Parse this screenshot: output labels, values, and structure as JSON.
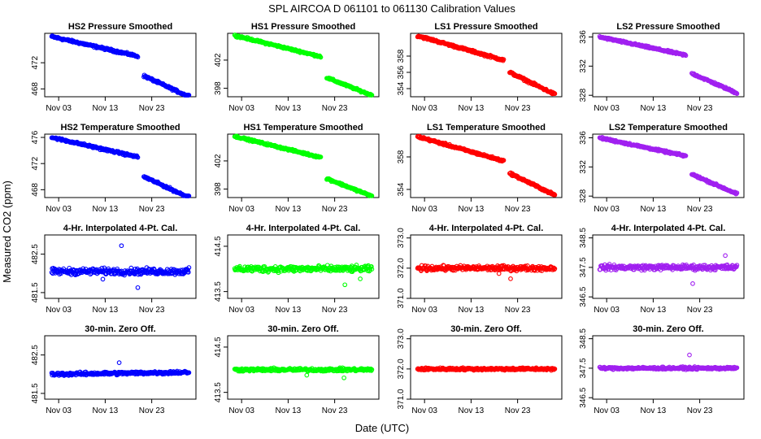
{
  "figure": {
    "title": "SPL   AIRCOA D   061101 to 061130   Calibration Values",
    "xlabel": "Date (UTC)",
    "ylabel": "Measured CO2 (ppm)"
  },
  "colors": {
    "HS2": "#0000ff",
    "HS1": "#00ff00",
    "LS1": "#ff0000",
    "LS2": "#a020f0"
  },
  "row_titles": [
    "Pressure Smoothed",
    "Temperature Smoothed",
    "4-Hr. Interpolated 4-Pt. Cal.",
    "30-min. Zero Off."
  ],
  "chart_data": [
    {
      "type": "scatter",
      "title": "HS2 Pressure Smoothed",
      "series": "HS2",
      "row": 0,
      "col": 0,
      "ylim": [
        466.8,
        476.5
      ],
      "yticks": [
        "468",
        "472"
      ],
      "xticks": [
        "Nov 03",
        "Nov 13",
        "Nov 23"
      ],
      "x_start": 1.5,
      "x_end": 31.0,
      "segments": [
        {
          "from": 1.5,
          "to": 20.0,
          "y0": 476.0,
          "y1": 473.0
        },
        {
          "from": 21.3,
          "to": 31.0,
          "y0": 470.0,
          "y1": 466.8
        }
      ],
      "noise": 0.25
    },
    {
      "type": "scatter",
      "title": "HS1 Pressure Smoothed",
      "series": "HS1",
      "row": 0,
      "col": 1,
      "ylim": [
        396.8,
        405.8
      ],
      "yticks": [
        "398",
        "402"
      ],
      "xticks": [
        "Nov 03",
        "Nov 13",
        "Nov 23"
      ],
      "x_start": 1.5,
      "x_end": 31.0,
      "segments": [
        {
          "from": 1.5,
          "to": 20.0,
          "y0": 405.5,
          "y1": 402.5
        },
        {
          "from": 21.3,
          "to": 31.0,
          "y0": 399.5,
          "y1": 397.0
        }
      ],
      "noise": 0.2
    },
    {
      "type": "scatter",
      "title": "LS1 Pressure Smoothed",
      "series": "LS1",
      "row": 0,
      "col": 2,
      "ylim": [
        353.0,
        360.8
      ],
      "yticks": [
        "354",
        "356",
        "358"
      ],
      "xticks": [
        "Nov 03",
        "Nov 13",
        "Nov 23"
      ],
      "x_start": 1.5,
      "x_end": 31.0,
      "segments": [
        {
          "from": 1.5,
          "to": 20.0,
          "y0": 360.5,
          "y1": 357.5
        },
        {
          "from": 21.3,
          "to": 31.0,
          "y0": 356.0,
          "y1": 353.3
        }
      ],
      "noise": 0.2
    },
    {
      "type": "scatter",
      "title": "LS2 Pressure Smoothed",
      "series": "LS2",
      "row": 0,
      "col": 3,
      "ylim": [
        327.8,
        336.5
      ],
      "yticks": [
        "328",
        "332",
        "336"
      ],
      "xticks": [
        "Nov 03",
        "Nov 13",
        "Nov 23"
      ],
      "x_start": 1.5,
      "x_end": 31.0,
      "segments": [
        {
          "from": 1.5,
          "to": 20.0,
          "y0": 336.0,
          "y1": 333.5
        },
        {
          "from": 21.3,
          "to": 31.0,
          "y0": 331.0,
          "y1": 328.3
        }
      ],
      "noise": 0.2
    },
    {
      "type": "scatter",
      "title": "HS2 Temperature Smoothed",
      "series": "HS2",
      "row": 1,
      "col": 0,
      "ylim": [
        466.8,
        476.5
      ],
      "yticks": [
        "468",
        "472",
        "476"
      ],
      "xticks": [
        "Nov 03",
        "Nov 13",
        "Nov 23"
      ],
      "x_start": 1.5,
      "x_end": 31.0,
      "segments": [
        {
          "from": 1.5,
          "to": 20.0,
          "y0": 476.0,
          "y1": 473.0
        },
        {
          "from": 21.3,
          "to": 31.0,
          "y0": 470.0,
          "y1": 466.8
        }
      ],
      "noise": 0.25
    },
    {
      "type": "scatter",
      "title": "HS1 Temperature Smoothed",
      "series": "HS1",
      "row": 1,
      "col": 1,
      "ylim": [
        396.8,
        405.8
      ],
      "yticks": [
        "398",
        "402"
      ],
      "xticks": [
        "Nov 03",
        "Nov 13",
        "Nov 23"
      ],
      "x_start": 1.5,
      "x_end": 31.0,
      "segments": [
        {
          "from": 1.5,
          "to": 20.0,
          "y0": 405.5,
          "y1": 402.5
        },
        {
          "from": 21.3,
          "to": 31.0,
          "y0": 399.5,
          "y1": 397.0
        }
      ],
      "noise": 0.2
    },
    {
      "type": "scatter",
      "title": "LS1 Temperature Smoothed",
      "series": "LS1",
      "row": 1,
      "col": 2,
      "ylim": [
        353.0,
        360.8
      ],
      "yticks": [
        "354",
        "358"
      ],
      "xticks": [
        "Nov 03",
        "Nov 13",
        "Nov 23"
      ],
      "x_start": 1.5,
      "x_end": 31.0,
      "segments": [
        {
          "from": 1.5,
          "to": 20.0,
          "y0": 360.5,
          "y1": 357.5
        },
        {
          "from": 21.3,
          "to": 31.0,
          "y0": 356.0,
          "y1": 353.3
        }
      ],
      "noise": 0.2
    },
    {
      "type": "scatter",
      "title": "LS2 Temperature Smoothed",
      "series": "LS2",
      "row": 1,
      "col": 3,
      "ylim": [
        327.8,
        336.5
      ],
      "yticks": [
        "328",
        "332",
        "336"
      ],
      "xticks": [
        "Nov 03",
        "Nov 13",
        "Nov 23"
      ],
      "x_start": 1.5,
      "x_end": 31.0,
      "segments": [
        {
          "from": 1.5,
          "to": 20.0,
          "y0": 336.0,
          "y1": 333.5
        },
        {
          "from": 21.3,
          "to": 31.0,
          "y0": 331.0,
          "y1": 328.3
        }
      ],
      "noise": 0.2
    },
    {
      "type": "scatter",
      "title": "4-Hr. Interpolated 4-Pt. Cal.",
      "series": "HS2",
      "row": 2,
      "col": 0,
      "ylim": [
        481.35,
        483.0
      ],
      "yticks": [
        "481.5",
        "482.5"
      ],
      "xticks": [
        "Nov 03",
        "Nov 13",
        "Nov 23"
      ],
      "x_start": 1.5,
      "x_end": 31.0,
      "segments": [
        {
          "from": 1.5,
          "to": 31.0,
          "y0": 482.05,
          "y1": 482.05
        }
      ],
      "noise": 0.12,
      "outliers": [
        [
          16.5,
          482.72
        ],
        [
          20.0,
          481.63
        ],
        [
          12.5,
          481.85
        ]
      ]
    },
    {
      "type": "scatter",
      "title": "4-Hr. Interpolated 4-Pt. Cal.",
      "series": "HS1",
      "row": 2,
      "col": 1,
      "ylim": [
        413.35,
        414.75
      ],
      "yticks": [
        "413.5",
        "414.5"
      ],
      "xticks": [
        "Nov 03",
        "Nov 13",
        "Nov 23"
      ],
      "x_start": 1.5,
      "x_end": 31.0,
      "segments": [
        {
          "from": 1.5,
          "to": 31.0,
          "y0": 414.0,
          "y1": 414.0
        }
      ],
      "noise": 0.1,
      "outliers": [
        [
          25.2,
          413.65
        ],
        [
          28.5,
          413.78
        ]
      ]
    },
    {
      "type": "scatter",
      "title": "4-Hr. Interpolated 4-Pt. Cal.",
      "series": "LS1",
      "row": 2,
      "col": 2,
      "ylim": [
        371.0,
        373.1
      ],
      "yticks": [
        "371.0",
        "372.0",
        "373.0"
      ],
      "xticks": [
        "Nov 03",
        "Nov 13",
        "Nov 23"
      ],
      "x_start": 1.5,
      "x_end": 31.0,
      "segments": [
        {
          "from": 1.5,
          "to": 31.0,
          "y0": 372.0,
          "y1": 372.0
        }
      ],
      "noise": 0.12,
      "outliers": [
        [
          21.5,
          371.65
        ],
        [
          19.0,
          371.82
        ]
      ]
    },
    {
      "type": "scatter",
      "title": "4-Hr. Interpolated 4-Pt. Cal.",
      "series": "LS2",
      "row": 2,
      "col": 3,
      "ylim": [
        346.45,
        348.6
      ],
      "yticks": [
        "346.5",
        "347.5",
        "348.5"
      ],
      "xticks": [
        "Nov 03",
        "Nov 13",
        "Nov 23"
      ],
      "x_start": 1.5,
      "x_end": 31.0,
      "segments": [
        {
          "from": 1.5,
          "to": 31.0,
          "y0": 347.5,
          "y1": 347.5
        }
      ],
      "noise": 0.13,
      "outliers": [
        [
          21.5,
          346.95
        ],
        [
          28.5,
          347.9
        ]
      ]
    },
    {
      "type": "scatter",
      "title": "30-min. Zero Off.",
      "series": "HS2",
      "row": 3,
      "col": 0,
      "ylim": [
        481.35,
        483.0
      ],
      "yticks": [
        "481.5",
        "482.5"
      ],
      "xticks": [
        "Nov 03",
        "Nov 13",
        "Nov 23"
      ],
      "x_start": 1.5,
      "x_end": 31.0,
      "segments": [
        {
          "from": 1.5,
          "to": 31.0,
          "y0": 482.0,
          "y1": 482.05
        }
      ],
      "noise": 0.06,
      "outliers": [
        [
          16.0,
          482.3
        ]
      ]
    },
    {
      "type": "scatter",
      "title": "30-min. Zero Off.",
      "series": "HS1",
      "row": 3,
      "col": 1,
      "ylim": [
        413.35,
        414.75
      ],
      "yticks": [
        "413.5",
        "414.5"
      ],
      "xticks": [
        "Nov 03",
        "Nov 13",
        "Nov 23"
      ],
      "x_start": 1.5,
      "x_end": 31.0,
      "segments": [
        {
          "from": 1.5,
          "to": 31.0,
          "y0": 414.0,
          "y1": 414.0
        }
      ],
      "noise": 0.05,
      "outliers": [
        [
          17.0,
          413.88
        ],
        [
          25.0,
          413.82
        ]
      ]
    },
    {
      "type": "scatter",
      "title": "30-min. Zero Off.",
      "series": "LS1",
      "row": 3,
      "col": 2,
      "ylim": [
        371.0,
        373.1
      ],
      "yticks": [
        "371.0",
        "372.0",
        "373.0"
      ],
      "xticks": [
        "Nov 03",
        "Nov 13",
        "Nov 23"
      ],
      "x_start": 1.5,
      "x_end": 31.0,
      "segments": [
        {
          "from": 1.5,
          "to": 31.0,
          "y0": 372.0,
          "y1": 372.0
        }
      ],
      "noise": 0.06,
      "outliers": []
    },
    {
      "type": "scatter",
      "title": "30-min. Zero Off.",
      "series": "LS2",
      "row": 3,
      "col": 3,
      "ylim": [
        346.45,
        348.6
      ],
      "yticks": [
        "346.5",
        "347.5",
        "348.5"
      ],
      "xticks": [
        "Nov 03",
        "Nov 13",
        "Nov 23"
      ],
      "x_start": 1.5,
      "x_end": 31.0,
      "segments": [
        {
          "from": 1.5,
          "to": 31.0,
          "y0": 347.5,
          "y1": 347.5
        }
      ],
      "noise": 0.06,
      "outliers": [
        [
          20.8,
          347.95
        ]
      ]
    }
  ]
}
